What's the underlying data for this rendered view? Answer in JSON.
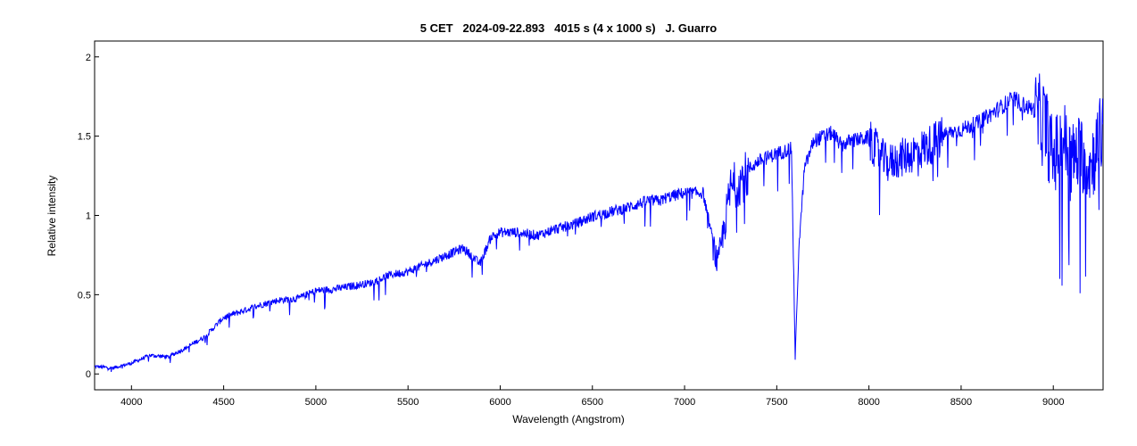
{
  "chart_data": {
    "type": "line",
    "title": "5 CET   2024-09-22.893   4015 s (4 x 1000 s)   J. Guarro",
    "xlabel": "Wavelength (Angstrom)",
    "ylabel": "Relative intensity",
    "xlim": [
      3800,
      9270
    ],
    "ylim": [
      -0.1,
      2.1
    ],
    "x_ticks": [
      4000,
      4500,
      5000,
      5500,
      6000,
      6500,
      7000,
      7500,
      8000,
      8500,
      9000
    ],
    "y_ticks": [
      0,
      0.5,
      1,
      1.5,
      2
    ],
    "y_tick_labels": [
      "0",
      "0.5",
      "1",
      "1.5",
      "2"
    ],
    "grid": false,
    "legend": "none",
    "line_color": "#0000ff",
    "series": [
      {
        "x": [
          3800,
          3900,
          4000,
          4100,
          4200,
          4300,
          4400,
          4500,
          4600,
          4700,
          4800,
          4900,
          5000,
          5100,
          5200,
          5300,
          5400,
          5500,
          5600,
          5700,
          5800,
          5890,
          5950,
          6000,
          6100,
          6200,
          6300,
          6400,
          6500,
          6600,
          6700,
          6800,
          6870,
          6900,
          7000,
          7100,
          7180,
          7250,
          7300,
          7400,
          7500,
          7580,
          7600,
          7620,
          7650,
          7700,
          7800,
          7850,
          7900,
          8000,
          8100,
          8200,
          8300,
          8400,
          8500,
          8600,
          8700,
          8780,
          8850,
          8950,
          9000,
          9050,
          9100,
          9150,
          9200,
          9270
        ],
        "y": [
          0.05,
          0.04,
          0.07,
          0.12,
          0.11,
          0.17,
          0.24,
          0.36,
          0.4,
          0.44,
          0.47,
          0.48,
          0.53,
          0.54,
          0.56,
          0.58,
          0.63,
          0.65,
          0.7,
          0.75,
          0.8,
          0.7,
          0.87,
          0.9,
          0.9,
          0.88,
          0.92,
          0.95,
          1.0,
          1.03,
          1.06,
          1.1,
          1.1,
          1.12,
          1.15,
          1.15,
          0.7,
          1.2,
          1.25,
          1.35,
          1.4,
          1.43,
          0.1,
          0.8,
          1.3,
          1.48,
          1.53,
          1.45,
          1.48,
          1.5,
          1.35,
          1.4,
          1.45,
          1.52,
          1.55,
          1.6,
          1.68,
          1.75,
          1.7,
          1.65,
          1.4,
          1.55,
          1.4,
          1.45,
          1.35,
          1.6
        ]
      }
    ]
  }
}
